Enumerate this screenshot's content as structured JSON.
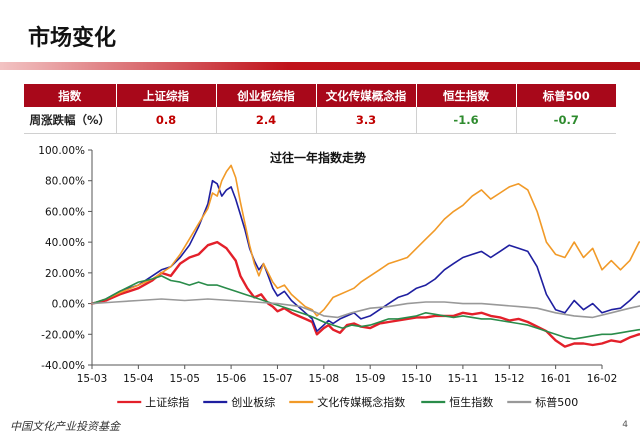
{
  "slide": {
    "title": "市场变化",
    "footer_logo": "中国文化产业投资基金",
    "page_number": "4"
  },
  "table": {
    "headers": [
      "指数",
      "上证综指",
      "创业板综指",
      "文化传媒概念指",
      "恒生指数",
      "标普500"
    ],
    "row_label": "周涨跌幅（%）",
    "values": [
      "0.8",
      "2.4",
      "3.3",
      "-1.6",
      "-0.7"
    ],
    "value_colors": [
      "#c00000",
      "#c00000",
      "#c00000",
      "#2e8b2e",
      "#2e8b2e"
    ]
  },
  "chart_data": {
    "type": "line",
    "title": "过往一年指数走势",
    "ylim": [
      -40,
      100
    ],
    "y_ticks": [
      "100.00%",
      "80.00%",
      "60.00%",
      "40.00%",
      "20.00%",
      "0.00%",
      "-20.00%",
      "-40.00%"
    ],
    "x_ticks": [
      "15-03",
      "15-04",
      "15-05",
      "15-06",
      "15-07",
      "15-08",
      "15-09",
      "15-10",
      "15-11",
      "15-12",
      "16-01",
      "16-02"
    ],
    "x_count": 12,
    "grid": false,
    "legend_position": "bottom",
    "series": [
      {
        "name": "上证综指",
        "color": "#e3202a",
        "points": [
          [
            0,
            0
          ],
          [
            0.3,
            2
          ],
          [
            0.6,
            6
          ],
          [
            1.0,
            10
          ],
          [
            1.3,
            15
          ],
          [
            1.5,
            20
          ],
          [
            1.7,
            18
          ],
          [
            1.9,
            26
          ],
          [
            2.1,
            30
          ],
          [
            2.3,
            32
          ],
          [
            2.5,
            38
          ],
          [
            2.7,
            40
          ],
          [
            2.9,
            36
          ],
          [
            3.1,
            28
          ],
          [
            3.2,
            18
          ],
          [
            3.35,
            10
          ],
          [
            3.5,
            4
          ],
          [
            3.65,
            6
          ],
          [
            3.8,
            0
          ],
          [
            3.9,
            -2
          ],
          [
            4.0,
            -5
          ],
          [
            4.15,
            -3
          ],
          [
            4.3,
            -6
          ],
          [
            4.45,
            -8
          ],
          [
            4.6,
            -10
          ],
          [
            4.75,
            -12
          ],
          [
            4.85,
            -20
          ],
          [
            5.0,
            -16
          ],
          [
            5.1,
            -14
          ],
          [
            5.2,
            -17
          ],
          [
            5.35,
            -19
          ],
          [
            5.5,
            -14
          ],
          [
            5.65,
            -13
          ],
          [
            5.8,
            -15
          ],
          [
            6.0,
            -16
          ],
          [
            6.2,
            -13
          ],
          [
            6.4,
            -12
          ],
          [
            6.6,
            -11
          ],
          [
            6.8,
            -10
          ],
          [
            7.0,
            -9
          ],
          [
            7.2,
            -9
          ],
          [
            7.4,
            -8
          ],
          [
            7.6,
            -8
          ],
          [
            7.8,
            -8
          ],
          [
            8.0,
            -6
          ],
          [
            8.2,
            -7
          ],
          [
            8.4,
            -6
          ],
          [
            8.6,
            -8
          ],
          [
            8.8,
            -9
          ],
          [
            9.0,
            -11
          ],
          [
            9.2,
            -10
          ],
          [
            9.4,
            -12
          ],
          [
            9.6,
            -15
          ],
          [
            9.8,
            -18
          ],
          [
            10.0,
            -24
          ],
          [
            10.2,
            -28
          ],
          [
            10.4,
            -26
          ],
          [
            10.6,
            -26
          ],
          [
            10.8,
            -27
          ],
          [
            11.0,
            -26
          ],
          [
            11.2,
            -24
          ],
          [
            11.4,
            -25
          ],
          [
            11.6,
            -22
          ],
          [
            11.8,
            -20
          ],
          [
            11.9,
            -20
          ]
        ]
      },
      {
        "name": "创业板综",
        "color": "#1f1fa0",
        "points": [
          [
            0,
            0
          ],
          [
            0.3,
            3
          ],
          [
            0.6,
            8
          ],
          [
            1.0,
            12
          ],
          [
            1.3,
            18
          ],
          [
            1.5,
            22
          ],
          [
            1.7,
            24
          ],
          [
            1.9,
            30
          ],
          [
            2.1,
            38
          ],
          [
            2.3,
            50
          ],
          [
            2.5,
            65
          ],
          [
            2.6,
            80
          ],
          [
            2.7,
            78
          ],
          [
            2.8,
            70
          ],
          [
            2.9,
            74
          ],
          [
            3.0,
            76
          ],
          [
            3.1,
            68
          ],
          [
            3.2,
            58
          ],
          [
            3.3,
            48
          ],
          [
            3.4,
            36
          ],
          [
            3.5,
            28
          ],
          [
            3.6,
            22
          ],
          [
            3.7,
            26
          ],
          [
            3.8,
            18
          ],
          [
            3.9,
            10
          ],
          [
            4.0,
            5
          ],
          [
            4.15,
            8
          ],
          [
            4.3,
            2
          ],
          [
            4.45,
            -2
          ],
          [
            4.6,
            -6
          ],
          [
            4.75,
            -10
          ],
          [
            4.85,
            -18
          ],
          [
            5.0,
            -14
          ],
          [
            5.1,
            -11
          ],
          [
            5.2,
            -13
          ],
          [
            5.35,
            -10
          ],
          [
            5.5,
            -8
          ],
          [
            5.65,
            -6
          ],
          [
            5.8,
            -10
          ],
          [
            6.0,
            -8
          ],
          [
            6.2,
            -4
          ],
          [
            6.4,
            0
          ],
          [
            6.6,
            4
          ],
          [
            6.8,
            6
          ],
          [
            7.0,
            10
          ],
          [
            7.2,
            12
          ],
          [
            7.4,
            16
          ],
          [
            7.6,
            22
          ],
          [
            7.8,
            26
          ],
          [
            8.0,
            30
          ],
          [
            8.2,
            32
          ],
          [
            8.4,
            34
          ],
          [
            8.6,
            30
          ],
          [
            8.8,
            34
          ],
          [
            9.0,
            38
          ],
          [
            9.2,
            36
          ],
          [
            9.4,
            34
          ],
          [
            9.6,
            24
          ],
          [
            9.8,
            6
          ],
          [
            10.0,
            -4
          ],
          [
            10.2,
            -6
          ],
          [
            10.4,
            2
          ],
          [
            10.6,
            -4
          ],
          [
            10.8,
            0
          ],
          [
            11.0,
            -6
          ],
          [
            11.2,
            -4
          ],
          [
            11.4,
            -3
          ],
          [
            11.6,
            2
          ],
          [
            11.8,
            8
          ],
          [
            11.9,
            6
          ]
        ]
      },
      {
        "name": "文化传媒概念指数",
        "color": "#f19a28",
        "points": [
          [
            0,
            0
          ],
          [
            0.3,
            3
          ],
          [
            0.6,
            7
          ],
          [
            1.0,
            12
          ],
          [
            1.3,
            16
          ],
          [
            1.5,
            20
          ],
          [
            1.7,
            24
          ],
          [
            1.9,
            32
          ],
          [
            2.1,
            42
          ],
          [
            2.3,
            52
          ],
          [
            2.5,
            62
          ],
          [
            2.6,
            72
          ],
          [
            2.7,
            70
          ],
          [
            2.8,
            80
          ],
          [
            2.9,
            86
          ],
          [
            3.0,
            90
          ],
          [
            3.1,
            82
          ],
          [
            3.2,
            66
          ],
          [
            3.3,
            52
          ],
          [
            3.4,
            38
          ],
          [
            3.5,
            26
          ],
          [
            3.6,
            18
          ],
          [
            3.7,
            26
          ],
          [
            3.8,
            20
          ],
          [
            3.9,
            14
          ],
          [
            4.0,
            10
          ],
          [
            4.15,
            12
          ],
          [
            4.3,
            6
          ],
          [
            4.45,
            2
          ],
          [
            4.6,
            -2
          ],
          [
            4.75,
            -4
          ],
          [
            4.85,
            -8
          ],
          [
            5.0,
            -4
          ],
          [
            5.1,
            0
          ],
          [
            5.2,
            4
          ],
          [
            5.35,
            6
          ],
          [
            5.5,
            8
          ],
          [
            5.65,
            10
          ],
          [
            5.8,
            14
          ],
          [
            6.0,
            18
          ],
          [
            6.2,
            22
          ],
          [
            6.4,
            26
          ],
          [
            6.6,
            28
          ],
          [
            6.8,
            30
          ],
          [
            7.0,
            36
          ],
          [
            7.2,
            42
          ],
          [
            7.4,
            48
          ],
          [
            7.6,
            55
          ],
          [
            7.8,
            60
          ],
          [
            8.0,
            64
          ],
          [
            8.2,
            70
          ],
          [
            8.4,
            74
          ],
          [
            8.6,
            68
          ],
          [
            8.8,
            72
          ],
          [
            9.0,
            76
          ],
          [
            9.2,
            78
          ],
          [
            9.4,
            74
          ],
          [
            9.6,
            60
          ],
          [
            9.8,
            40
          ],
          [
            10.0,
            32
          ],
          [
            10.2,
            30
          ],
          [
            10.4,
            40
          ],
          [
            10.6,
            30
          ],
          [
            10.8,
            36
          ],
          [
            11.0,
            22
          ],
          [
            11.2,
            28
          ],
          [
            11.4,
            22
          ],
          [
            11.6,
            28
          ],
          [
            11.8,
            40
          ],
          [
            11.9,
            40
          ]
        ]
      },
      {
        "name": "恒生指数",
        "color": "#2a8c4a",
        "points": [
          [
            0,
            0
          ],
          [
            0.3,
            3
          ],
          [
            0.6,
            8
          ],
          [
            1.0,
            14
          ],
          [
            1.3,
            16
          ],
          [
            1.5,
            18
          ],
          [
            1.7,
            15
          ],
          [
            1.9,
            14
          ],
          [
            2.1,
            12
          ],
          [
            2.3,
            14
          ],
          [
            2.5,
            12
          ],
          [
            2.7,
            12
          ],
          [
            2.9,
            10
          ],
          [
            3.1,
            8
          ],
          [
            3.3,
            6
          ],
          [
            3.5,
            4
          ],
          [
            3.7,
            2
          ],
          [
            3.9,
            0
          ],
          [
            4.1,
            -2
          ],
          [
            4.3,
            -4
          ],
          [
            4.5,
            -6
          ],
          [
            4.7,
            -8
          ],
          [
            4.85,
            -10
          ],
          [
            5.0,
            -12
          ],
          [
            5.2,
            -14
          ],
          [
            5.4,
            -16
          ],
          [
            5.6,
            -14
          ],
          [
            5.8,
            -15
          ],
          [
            6.0,
            -14
          ],
          [
            6.2,
            -12
          ],
          [
            6.4,
            -10
          ],
          [
            6.6,
            -10
          ],
          [
            6.8,
            -9
          ],
          [
            7.0,
            -8
          ],
          [
            7.2,
            -6
          ],
          [
            7.4,
            -7
          ],
          [
            7.6,
            -8
          ],
          [
            7.8,
            -9
          ],
          [
            8.0,
            -8
          ],
          [
            8.2,
            -9
          ],
          [
            8.4,
            -10
          ],
          [
            8.6,
            -10
          ],
          [
            8.8,
            -11
          ],
          [
            9.0,
            -12
          ],
          [
            9.2,
            -13
          ],
          [
            9.4,
            -14
          ],
          [
            9.6,
            -16
          ],
          [
            9.8,
            -18
          ],
          [
            10.0,
            -20
          ],
          [
            10.2,
            -22
          ],
          [
            10.4,
            -23
          ],
          [
            10.6,
            -22
          ],
          [
            10.8,
            -21
          ],
          [
            11.0,
            -20
          ],
          [
            11.2,
            -20
          ],
          [
            11.4,
            -19
          ],
          [
            11.6,
            -18
          ],
          [
            11.8,
            -17
          ],
          [
            11.9,
            -17
          ]
        ]
      },
      {
        "name": "标普500",
        "color": "#999999",
        "points": [
          [
            0,
            0
          ],
          [
            0.5,
            1
          ],
          [
            1.0,
            2
          ],
          [
            1.5,
            3
          ],
          [
            2.0,
            2
          ],
          [
            2.5,
            3
          ],
          [
            3.0,
            2
          ],
          [
            3.5,
            1
          ],
          [
            4.0,
            0
          ],
          [
            4.5,
            -2
          ],
          [
            4.85,
            -6
          ],
          [
            5.0,
            -8
          ],
          [
            5.3,
            -9
          ],
          [
            5.6,
            -6
          ],
          [
            6.0,
            -3
          ],
          [
            6.4,
            -2
          ],
          [
            6.8,
            0
          ],
          [
            7.2,
            1
          ],
          [
            7.6,
            1
          ],
          [
            8.0,
            0
          ],
          [
            8.4,
            0
          ],
          [
            8.8,
            -1
          ],
          [
            9.2,
            -2
          ],
          [
            9.6,
            -3
          ],
          [
            10.0,
            -6
          ],
          [
            10.4,
            -8
          ],
          [
            10.8,
            -9
          ],
          [
            11.2,
            -6
          ],
          [
            11.6,
            -3
          ],
          [
            11.9,
            -1
          ]
        ]
      }
    ]
  }
}
